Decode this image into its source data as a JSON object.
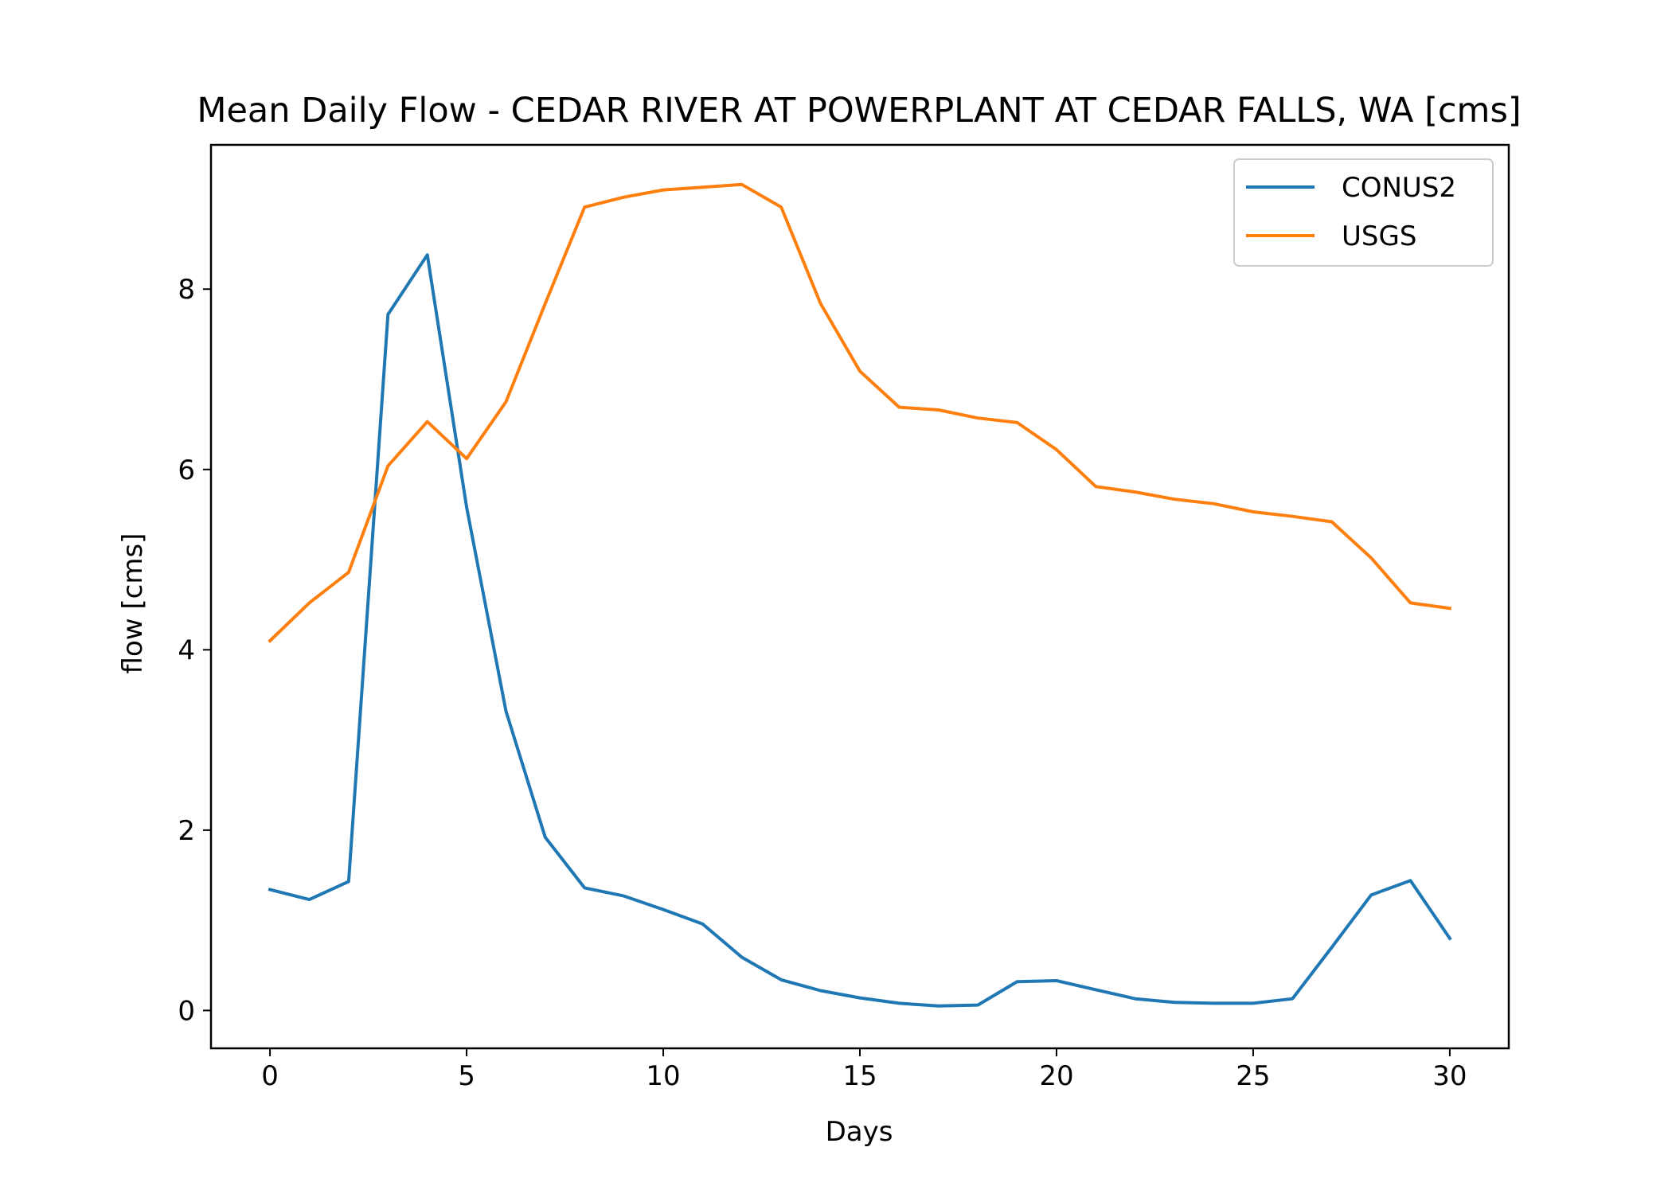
{
  "chart_data": {
    "type": "line",
    "title": "Mean Daily Flow - CEDAR RIVER AT POWERPLANT AT CEDAR FALLS, WA [cms]",
    "xlabel": "Days",
    "ylabel": "flow [cms]",
    "xlim": [
      -1.5,
      31.5
    ],
    "ylim": [
      -0.42,
      9.6
    ],
    "xticks": [
      0,
      5,
      10,
      15,
      20,
      25,
      30
    ],
    "yticks": [
      0,
      2,
      4,
      6,
      8
    ],
    "grid": false,
    "legend": "top-right",
    "x": [
      0,
      1,
      2,
      3,
      4,
      5,
      6,
      7,
      8,
      9,
      10,
      11,
      12,
      13,
      14,
      15,
      16,
      17,
      18,
      19,
      20,
      21,
      22,
      23,
      24,
      25,
      26,
      27,
      28,
      29,
      30
    ],
    "series": [
      {
        "name": "CONUS2",
        "color": "#1f77b4",
        "values": [
          1.34,
          1.23,
          1.43,
          7.72,
          8.38,
          5.58,
          3.32,
          1.92,
          1.36,
          1.27,
          1.12,
          0.96,
          0.59,
          0.34,
          0.22,
          0.14,
          0.08,
          0.05,
          0.06,
          0.32,
          0.33,
          0.23,
          0.13,
          0.09,
          0.08,
          0.08,
          0.13,
          0.7,
          1.28,
          1.44,
          0.8
        ]
      },
      {
        "name": "USGS",
        "color": "#ff7f0e",
        "values": [
          4.1,
          4.52,
          4.86,
          6.04,
          6.53,
          6.12,
          6.75,
          7.84,
          8.91,
          9.02,
          9.1,
          9.13,
          9.16,
          8.91,
          7.84,
          7.09,
          6.69,
          6.66,
          6.57,
          6.52,
          6.22,
          5.81,
          5.75,
          5.67,
          5.62,
          5.53,
          5.48,
          5.42,
          5.02,
          4.52,
          4.46
        ]
      }
    ]
  }
}
